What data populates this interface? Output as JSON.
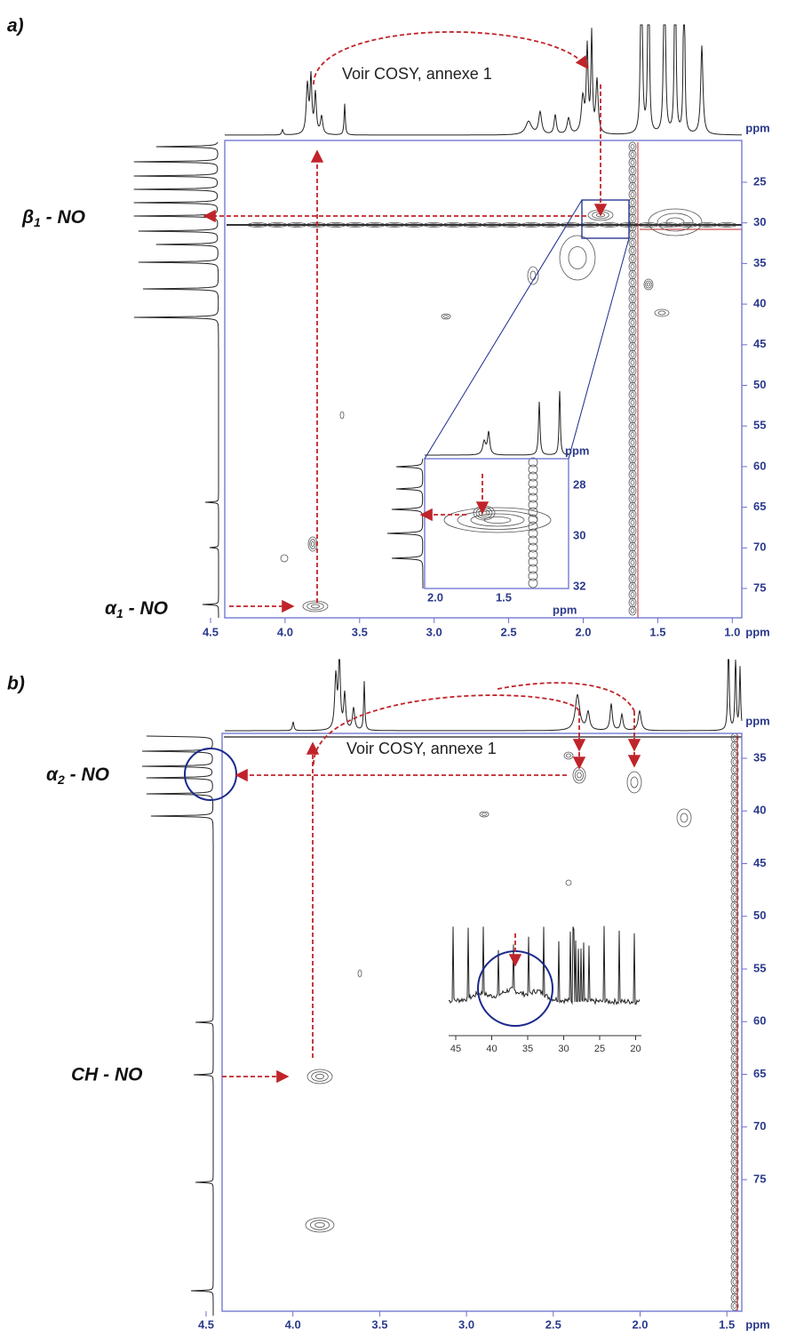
{
  "panels": [
    {
      "label": "a)",
      "annotation": "Voir COSY, annexe 1",
      "x_axis": {
        "ticks": [
          "4.5",
          "4.0",
          "3.5",
          "3.0",
          "2.5",
          "2.0",
          "1.5",
          "1.0"
        ],
        "unit": "ppm"
      },
      "y_axis": {
        "ticks": [
          "25",
          "30",
          "35",
          "40",
          "45",
          "50",
          "55",
          "60",
          "65",
          "70",
          "75"
        ],
        "unit": "ppm"
      },
      "peak_labels": [
        {
          "main": "β",
          "sub": "1",
          "tail": " - NO"
        },
        {
          "main": "α",
          "sub": "1",
          "tail": " - NO"
        }
      ],
      "inset": {
        "x_ticks": [
          "2.0",
          "1.5"
        ],
        "x_unit": "ppm",
        "y_ticks": [
          "28",
          "30",
          "32"
        ],
        "y_unit": "ppm"
      }
    },
    {
      "label": "b)",
      "annotation": "Voir COSY, annexe 1",
      "x_axis": {
        "ticks": [
          "4.5",
          "4.0",
          "3.5",
          "3.0",
          "2.5",
          "2.0",
          "1.5"
        ],
        "unit": "ppm"
      },
      "y_axis": {
        "ticks": [
          "35",
          "40",
          "45",
          "50",
          "55",
          "60",
          "65",
          "70",
          "75"
        ],
        "unit": "ppm"
      },
      "peak_labels": [
        {
          "main": "α",
          "sub": "2",
          "tail": " - NO"
        },
        {
          "main": "CH - NO"
        }
      ],
      "inset": {
        "x_ticks": [
          "45",
          "40",
          "35",
          "30",
          "25",
          "20"
        ]
      }
    }
  ]
}
